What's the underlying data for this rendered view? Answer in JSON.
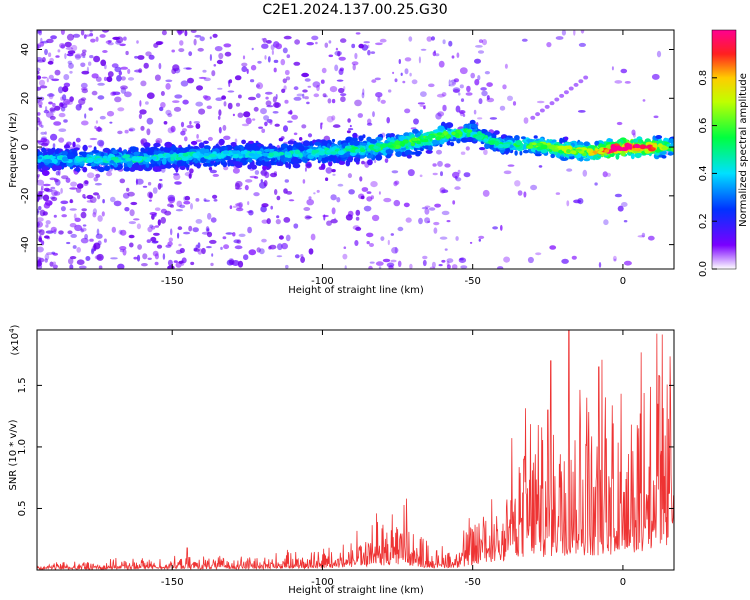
{
  "title": "C2E1.2024.137.00.25.G30",
  "top_chart": {
    "xlabel": "Height of straight line (km)",
    "ylabel": "Frequency (Hz)",
    "xticks": [
      -150,
      -100,
      -50,
      0
    ],
    "yticks": [
      40,
      20,
      0,
      -20,
      -40
    ],
    "xlim": [
      -195,
      17
    ],
    "ylim": [
      -50,
      48
    ],
    "colorbar": {
      "label": "Normalized spectral amplitude",
      "ticks": [
        "0.0",
        "0.2",
        "0.4",
        "0.6",
        "0.8"
      ],
      "range": [
        0,
        1
      ]
    }
  },
  "bottom_chart": {
    "xlabel": "Height of straight line (km)",
    "ylabel": "SNR (10 * v/v)",
    "yexponent_base": "(x10",
    "yexponent_power": "4",
    "yexponent_close": ")",
    "xticks": [
      -150,
      -100,
      -50,
      0
    ],
    "yticks": [
      "0.5",
      "1.0",
      "1.5"
    ],
    "xlim": [
      -195,
      17
    ],
    "ylim": [
      0,
      19500
    ],
    "color": "#ee3333"
  },
  "chart_data": [
    {
      "type": "heatmap",
      "title": "C2E1.2024.137.00.25.G30",
      "xlabel": "Height of straight line (km)",
      "ylabel": "Frequency (Hz)",
      "xlim": [
        -195,
        17
      ],
      "ylim": [
        -50,
        48
      ],
      "colorbar_range": [
        0,
        1
      ],
      "ridge": {
        "x": [
          -195,
          -170,
          -150,
          -130,
          -110,
          -100,
          -90,
          -80,
          -70,
          -60,
          -50,
          -45,
          -40,
          -30,
          -20,
          -10,
          0,
          10,
          17
        ],
        "frequency": [
          -5,
          -5,
          -4,
          -3,
          -3,
          -2,
          -1,
          0,
          2,
          5,
          6,
          3,
          1,
          1,
          -1,
          -2,
          0,
          0,
          0
        ],
        "amplitude": [
          0.35,
          0.42,
          0.42,
          0.38,
          0.4,
          0.42,
          0.45,
          0.5,
          0.55,
          0.55,
          0.5,
          0.45,
          0.45,
          0.55,
          0.6,
          0.7,
          0.95,
          0.8,
          0.5
        ]
      }
    },
    {
      "type": "line",
      "xlabel": "Height of straight line (km)",
      "ylabel": "SNR (10 * v/v)",
      "xlim": [
        -195,
        17
      ],
      "ylim": [
        0,
        19500
      ],
      "envelope_x": [
        -195,
        -150,
        -120,
        -100,
        -85,
        -75,
        -70,
        -62,
        -55,
        -45,
        -35,
        -25,
        -18,
        -10,
        0,
        10,
        17
      ],
      "envelope_snr": [
        300,
        500,
        600,
        900,
        1800,
        3000,
        1800,
        900,
        1200,
        3500,
        6000,
        7000,
        8000,
        7500,
        8500,
        10000,
        10500
      ],
      "peaks": [
        {
          "x": -145,
          "snr": 1800
        },
        {
          "x": -82,
          "snr": 4600
        },
        {
          "x": -72,
          "snr": 5800
        },
        {
          "x": -33,
          "snr": 9000
        },
        {
          "x": -25,
          "snr": 13000
        },
        {
          "x": -24,
          "snr": 17000
        },
        {
          "x": -18,
          "snr": 19500
        },
        {
          "x": -12,
          "snr": 14000
        },
        {
          "x": -8,
          "snr": 16500
        },
        {
          "x": 12,
          "snr": 15800
        }
      ]
    }
  ]
}
